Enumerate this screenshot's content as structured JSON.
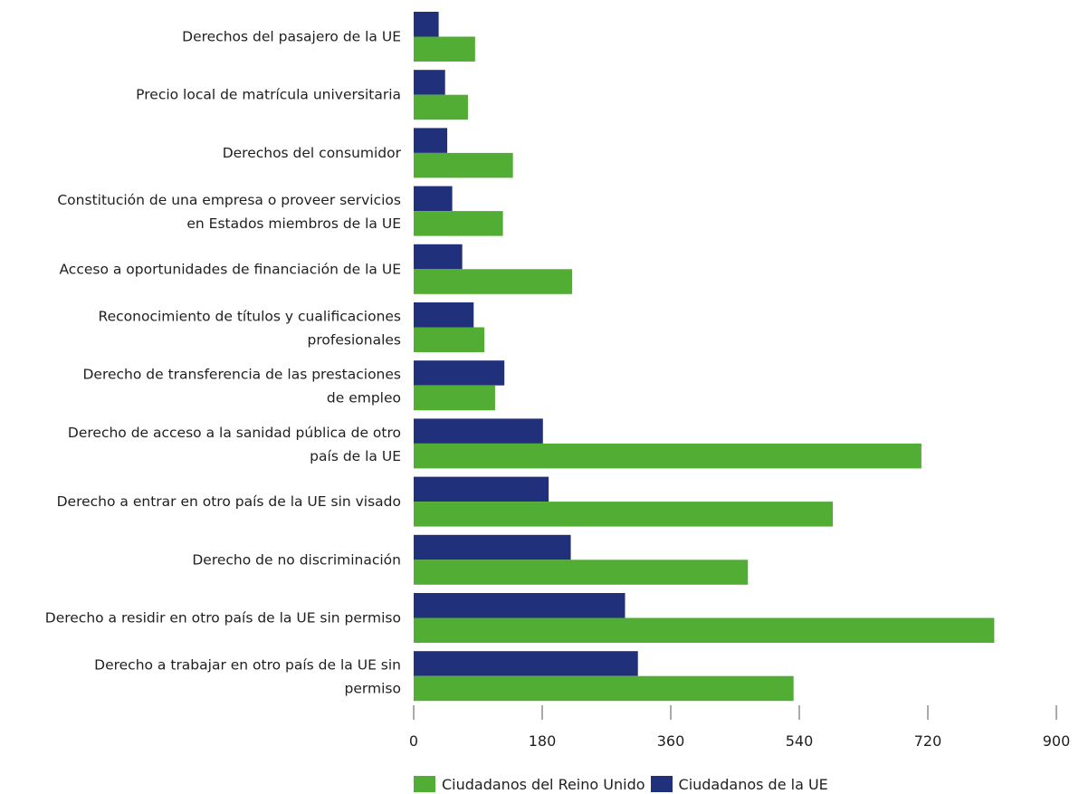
{
  "chart_data": {
    "type": "bar",
    "orientation": "horizontal",
    "categories": [
      "Derechos del pasajero de la UE",
      "Precio local de matrícula universitaria",
      "Derechos del consumidor",
      "Constitución de una empresa o proveer servicios\nen Estados miembros de la UE",
      "Acceso a oportunidades de financiación de la UE",
      "Reconocimiento de títulos y cualificaciones\nprofesionales",
      "Derecho de transferencia de las prestaciones\nde empleo",
      "Derecho de acceso a la sanidad pública de otro\npaís de la UE",
      "Derecho a entrar en otro país de la UE sin visado",
      "Derecho de no discriminación",
      "Derecho a residir en otro país de la UE sin permiso",
      "Derecho a trabajar en otro país de la UE sin\npermiso"
    ],
    "series": [
      {
        "name": "Ciudadanos de la UE",
        "color": "#21307a",
        "values": [
          35,
          44,
          47,
          54,
          68,
          84,
          127,
          181,
          189,
          220,
          296,
          314
        ]
      },
      {
        "name": "Ciudadanos del Reino Unido",
        "color": "#52ad35",
        "values": [
          86,
          76,
          139,
          125,
          222,
          99,
          114,
          711,
          587,
          468,
          813,
          532
        ]
      }
    ],
    "xlim": [
      0,
      900
    ],
    "xticks": [
      "0",
      "180",
      "360",
      "540",
      "720",
      "900"
    ],
    "legend_order": [
      "Ciudadanos del Reino Unido",
      "Ciudadanos de la UE"
    ],
    "legend_position": "bottom",
    "grid": false,
    "title": "",
    "xlabel": "",
    "ylabel": ""
  }
}
